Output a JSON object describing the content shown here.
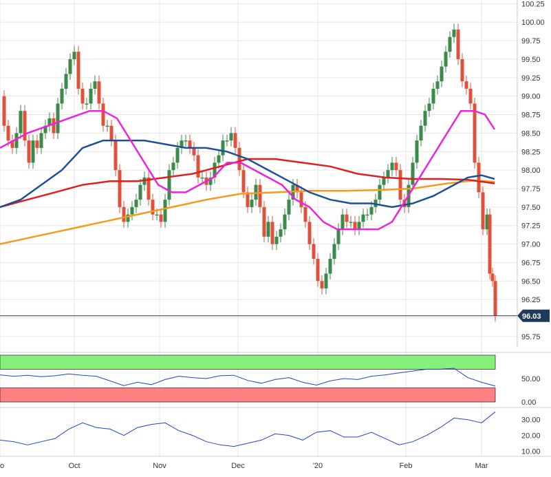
{
  "chart_data": [
    {
      "type": "candlestick",
      "title": "",
      "xlabel": "",
      "ylabel": "",
      "ylim": [
        95.6,
        100.3
      ],
      "grid": true,
      "x_ticks": [
        "o",
        "Oct",
        "Nov",
        "Dec",
        "'20",
        "Feb",
        "Mar"
      ],
      "y_ticks": [
        95.75,
        96.0,
        96.25,
        96.5,
        96.75,
        97.0,
        97.25,
        97.5,
        97.75,
        98.0,
        98.25,
        98.5,
        98.75,
        99.0,
        99.25,
        99.5,
        99.75,
        100.0,
        100.25
      ],
      "y_tick_labels": [
        "95.75",
        "96.00",
        "96.25",
        "96.50",
        "96.75",
        "97.00",
        "97.25",
        "97.50",
        "97.75",
        "98.00",
        "98.25",
        "98.50",
        "98.75",
        "99.00",
        "99.25",
        "99.50",
        "99.75",
        "100.00",
        "100.25"
      ],
      "last_price": 96.03,
      "last_price_label": "96.03",
      "colors": {
        "up": "#3a8a4a",
        "down": "#e0503a",
        "ma_fast": "#ee22dd",
        "ma_mid": "#1d4f99",
        "ma_slow": "#e01e1e",
        "ma_long": "#f59a1e",
        "price_line": "#1f3a5c"
      },
      "price_path": [
        [
          0,
          99.0
        ],
        [
          6,
          98.6
        ],
        [
          12,
          98.4
        ],
        [
          18,
          98.3
        ],
        [
          24,
          98.5
        ],
        [
          30,
          98.8
        ],
        [
          36,
          98.4
        ],
        [
          42,
          98.1
        ],
        [
          48,
          98.4
        ],
        [
          54,
          98.3
        ],
        [
          60,
          98.5
        ],
        [
          66,
          98.6
        ],
        [
          72,
          98.7
        ],
        [
          78,
          98.5
        ],
        [
          84,
          98.9
        ],
        [
          90,
          99.1
        ],
        [
          96,
          99.3
        ],
        [
          102,
          99.5
        ],
        [
          108,
          99.6
        ],
        [
          114,
          99.1
        ],
        [
          120,
          98.9
        ],
        [
          126,
          98.9
        ],
        [
          132,
          99.1
        ],
        [
          138,
          99.2
        ],
        [
          144,
          98.9
        ],
        [
          150,
          98.6
        ],
        [
          156,
          98.6
        ],
        [
          162,
          98.4
        ],
        [
          168,
          98.0
        ],
        [
          174,
          97.5
        ],
        [
          180,
          97.3
        ],
        [
          186,
          97.4
        ],
        [
          192,
          97.5
        ],
        [
          198,
          97.6
        ],
        [
          204,
          97.8
        ],
        [
          210,
          97.9
        ],
        [
          216,
          97.6
        ],
        [
          222,
          97.4
        ],
        [
          228,
          97.4
        ],
        [
          234,
          97.3
        ],
        [
          240,
          97.6
        ],
        [
          246,
          98.0
        ],
        [
          252,
          98.1
        ],
        [
          258,
          98.3
        ],
        [
          264,
          98.4
        ],
        [
          270,
          98.4
        ],
        [
          276,
          98.3
        ],
        [
          282,
          98.2
        ],
        [
          288,
          97.9
        ],
        [
          294,
          97.9
        ],
        [
          300,
          97.8
        ],
        [
          306,
          97.9
        ],
        [
          312,
          98.1
        ],
        [
          318,
          98.2
        ],
        [
          324,
          98.4
        ],
        [
          330,
          98.4
        ],
        [
          336,
          98.5
        ],
        [
          342,
          98.3
        ],
        [
          348,
          98.0
        ],
        [
          354,
          97.7
        ],
        [
          360,
          97.5
        ],
        [
          366,
          97.6
        ],
        [
          372,
          97.8
        ],
        [
          378,
          97.5
        ],
        [
          384,
          97.1
        ],
        [
          390,
          97.3
        ],
        [
          396,
          97.0
        ],
        [
          402,
          97.1
        ],
        [
          408,
          97.2
        ],
        [
          414,
          97.4
        ],
        [
          420,
          97.6
        ],
        [
          426,
          97.8
        ],
        [
          432,
          97.7
        ],
        [
          438,
          97.5
        ],
        [
          444,
          97.3
        ],
        [
          450,
          97.0
        ],
        [
          456,
          96.8
        ],
        [
          462,
          96.5
        ],
        [
          468,
          96.4
        ],
        [
          474,
          96.6
        ],
        [
          480,
          96.8
        ],
        [
          486,
          97.0
        ],
        [
          492,
          97.2
        ],
        [
          498,
          97.4
        ],
        [
          504,
          97.3
        ],
        [
          510,
          97.3
        ],
        [
          516,
          97.2
        ],
        [
          522,
          97.3
        ],
        [
          528,
          97.4
        ],
        [
          534,
          97.4
        ],
        [
          540,
          97.5
        ],
        [
          546,
          97.6
        ],
        [
          552,
          97.8
        ],
        [
          558,
          97.9
        ],
        [
          564,
          98.0
        ],
        [
          570,
          98.1
        ],
        [
          576,
          98.0
        ],
        [
          582,
          97.6
        ],
        [
          588,
          97.5
        ],
        [
          594,
          97.8
        ],
        [
          600,
          98.1
        ],
        [
          606,
          98.4
        ],
        [
          612,
          98.6
        ],
        [
          618,
          98.8
        ],
        [
          624,
          98.9
        ],
        [
          630,
          99.1
        ],
        [
          636,
          99.2
        ],
        [
          642,
          99.4
        ],
        [
          648,
          99.6
        ],
        [
          654,
          99.8
        ],
        [
          660,
          99.9
        ],
        [
          666,
          99.5
        ],
        [
          672,
          99.2
        ],
        [
          678,
          99.1
        ],
        [
          684,
          98.9
        ],
        [
          690,
          98.1
        ],
        [
          696,
          97.7
        ],
        [
          702,
          97.2
        ],
        [
          708,
          97.4
        ],
        [
          712,
          96.6
        ],
        [
          716,
          96.5
        ],
        [
          720,
          96.03
        ]
      ],
      "ma_fast_path": [
        [
          0,
          98.3
        ],
        [
          20,
          98.4
        ],
        [
          40,
          98.5
        ],
        [
          70,
          98.6
        ],
        [
          100,
          98.7
        ],
        [
          130,
          98.8
        ],
        [
          150,
          98.8
        ],
        [
          170,
          98.7
        ],
        [
          190,
          98.4
        ],
        [
          210,
          98.1
        ],
        [
          230,
          97.8
        ],
        [
          250,
          97.7
        ],
        [
          270,
          97.7
        ],
        [
          290,
          97.8
        ],
        [
          310,
          97.9
        ],
        [
          330,
          98.1
        ],
        [
          350,
          98.1
        ],
        [
          370,
          98.0
        ],
        [
          390,
          97.9
        ],
        [
          410,
          97.8
        ],
        [
          430,
          97.6
        ],
        [
          450,
          97.5
        ],
        [
          470,
          97.3
        ],
        [
          490,
          97.2
        ],
        [
          520,
          97.2
        ],
        [
          550,
          97.2
        ],
        [
          570,
          97.3
        ],
        [
          590,
          97.6
        ],
        [
          610,
          97.9
        ],
        [
          630,
          98.2
        ],
        [
          650,
          98.5
        ],
        [
          670,
          98.8
        ],
        [
          690,
          98.8
        ],
        [
          705,
          98.75
        ],
        [
          719,
          98.55
        ]
      ],
      "ma_mid_path": [
        [
          0,
          97.5
        ],
        [
          30,
          97.6
        ],
        [
          60,
          97.8
        ],
        [
          90,
          98.0
        ],
        [
          120,
          98.3
        ],
        [
          150,
          98.4
        ],
        [
          180,
          98.4
        ],
        [
          210,
          98.4
        ],
        [
          240,
          98.35
        ],
        [
          270,
          98.3
        ],
        [
          300,
          98.3
        ],
        [
          330,
          98.25
        ],
        [
          360,
          98.15
        ],
        [
          390,
          98.0
        ],
        [
          420,
          97.85
        ],
        [
          450,
          97.7
        ],
        [
          480,
          97.6
        ],
        [
          510,
          97.55
        ],
        [
          540,
          97.55
        ],
        [
          570,
          97.5
        ],
        [
          600,
          97.55
        ],
        [
          630,
          97.65
        ],
        [
          660,
          97.8
        ],
        [
          680,
          97.9
        ],
        [
          700,
          97.93
        ],
        [
          719,
          97.88
        ]
      ],
      "ma_slow_path": [
        [
          0,
          97.5
        ],
        [
          40,
          97.6
        ],
        [
          80,
          97.7
        ],
        [
          120,
          97.8
        ],
        [
          160,
          97.85
        ],
        [
          200,
          97.85
        ],
        [
          240,
          97.9
        ],
        [
          280,
          97.95
        ],
        [
          320,
          98.05
        ],
        [
          360,
          98.15
        ],
        [
          400,
          98.15
        ],
        [
          440,
          98.1
        ],
        [
          480,
          98.05
        ],
        [
          520,
          97.95
        ],
        [
          560,
          97.9
        ],
        [
          600,
          97.88
        ],
        [
          640,
          97.88
        ],
        [
          680,
          97.87
        ],
        [
          719,
          97.82
        ]
      ],
      "ma_long_path": [
        [
          0,
          97.0
        ],
        [
          50,
          97.1
        ],
        [
          100,
          97.2
        ],
        [
          150,
          97.3
        ],
        [
          200,
          97.4
        ],
        [
          250,
          97.5
        ],
        [
          300,
          97.6
        ],
        [
          350,
          97.68
        ],
        [
          400,
          97.7
        ],
        [
          450,
          97.72
        ],
        [
          500,
          97.72
        ],
        [
          550,
          97.73
        ],
        [
          600,
          97.75
        ],
        [
          650,
          97.82
        ],
        [
          690,
          97.86
        ],
        [
          719,
          97.84
        ]
      ]
    },
    {
      "type": "line",
      "title": "",
      "ylim": [
        0,
        100
      ],
      "y_ticks": [
        0,
        50
      ],
      "y_tick_labels": [
        "0.00",
        "50.00"
      ],
      "overbought_zone": [
        70,
        100
      ],
      "oversold_zone": [
        0,
        30
      ],
      "zone_colors": {
        "overbought": "#86f07a",
        "oversold": "#ff8080",
        "line": "#2040d0"
      },
      "series": [
        {
          "values": [
            [
              0,
              58
            ],
            [
              20,
              55
            ],
            [
              40,
              57
            ],
            [
              60,
              54
            ],
            [
              80,
              56
            ],
            [
              100,
              60
            ],
            [
              120,
              57
            ],
            [
              140,
              55
            ],
            [
              160,
              45
            ],
            [
              180,
              35
            ],
            [
              200,
              42
            ],
            [
              220,
              37
            ],
            [
              240,
              48
            ],
            [
              260,
              55
            ],
            [
              280,
              52
            ],
            [
              300,
              50
            ],
            [
              320,
              56
            ],
            [
              340,
              57
            ],
            [
              360,
              46
            ],
            [
              380,
              40
            ],
            [
              400,
              48
            ],
            [
              420,
              52
            ],
            [
              440,
              42
            ],
            [
              460,
              36
            ],
            [
              480,
              45
            ],
            [
              500,
              50
            ],
            [
              520,
              48
            ],
            [
              540,
              55
            ],
            [
              560,
              58
            ],
            [
              580,
              62
            ],
            [
              600,
              66
            ],
            [
              620,
              70
            ],
            [
              640,
              70
            ],
            [
              660,
              72
            ],
            [
              680,
              52
            ],
            [
              700,
              42
            ],
            [
              720,
              34
            ]
          ]
        }
      ]
    },
    {
      "type": "line",
      "title": "",
      "ylim": [
        8,
        36
      ],
      "y_ticks": [
        10,
        20,
        30
      ],
      "y_tick_labels": [
        "10.00",
        "20.00",
        "30.00"
      ],
      "series": [
        {
          "values": [
            [
              0,
              17
            ],
            [
              20,
              16
            ],
            [
              40,
              14
            ],
            [
              60,
              16
            ],
            [
              80,
              18
            ],
            [
              100,
              24
            ],
            [
              120,
              28
            ],
            [
              140,
              25
            ],
            [
              160,
              24
            ],
            [
              180,
              20
            ],
            [
              200,
              25
            ],
            [
              220,
              27
            ],
            [
              240,
              28
            ],
            [
              260,
              23
            ],
            [
              280,
              20
            ],
            [
              300,
              16
            ],
            [
              320,
              14
            ],
            [
              340,
              13
            ],
            [
              360,
              15
            ],
            [
              380,
              17
            ],
            [
              400,
              21
            ],
            [
              420,
              20
            ],
            [
              440,
              17
            ],
            [
              460,
              22
            ],
            [
              480,
              23
            ],
            [
              500,
              19
            ],
            [
              520,
              19
            ],
            [
              540,
              22
            ],
            [
              560,
              18
            ],
            [
              580,
              14
            ],
            [
              600,
              16
            ],
            [
              620,
              20
            ],
            [
              640,
              25
            ],
            [
              660,
              31
            ],
            [
              680,
              30
            ],
            [
              700,
              28
            ],
            [
              720,
              35
            ]
          ]
        }
      ]
    }
  ]
}
